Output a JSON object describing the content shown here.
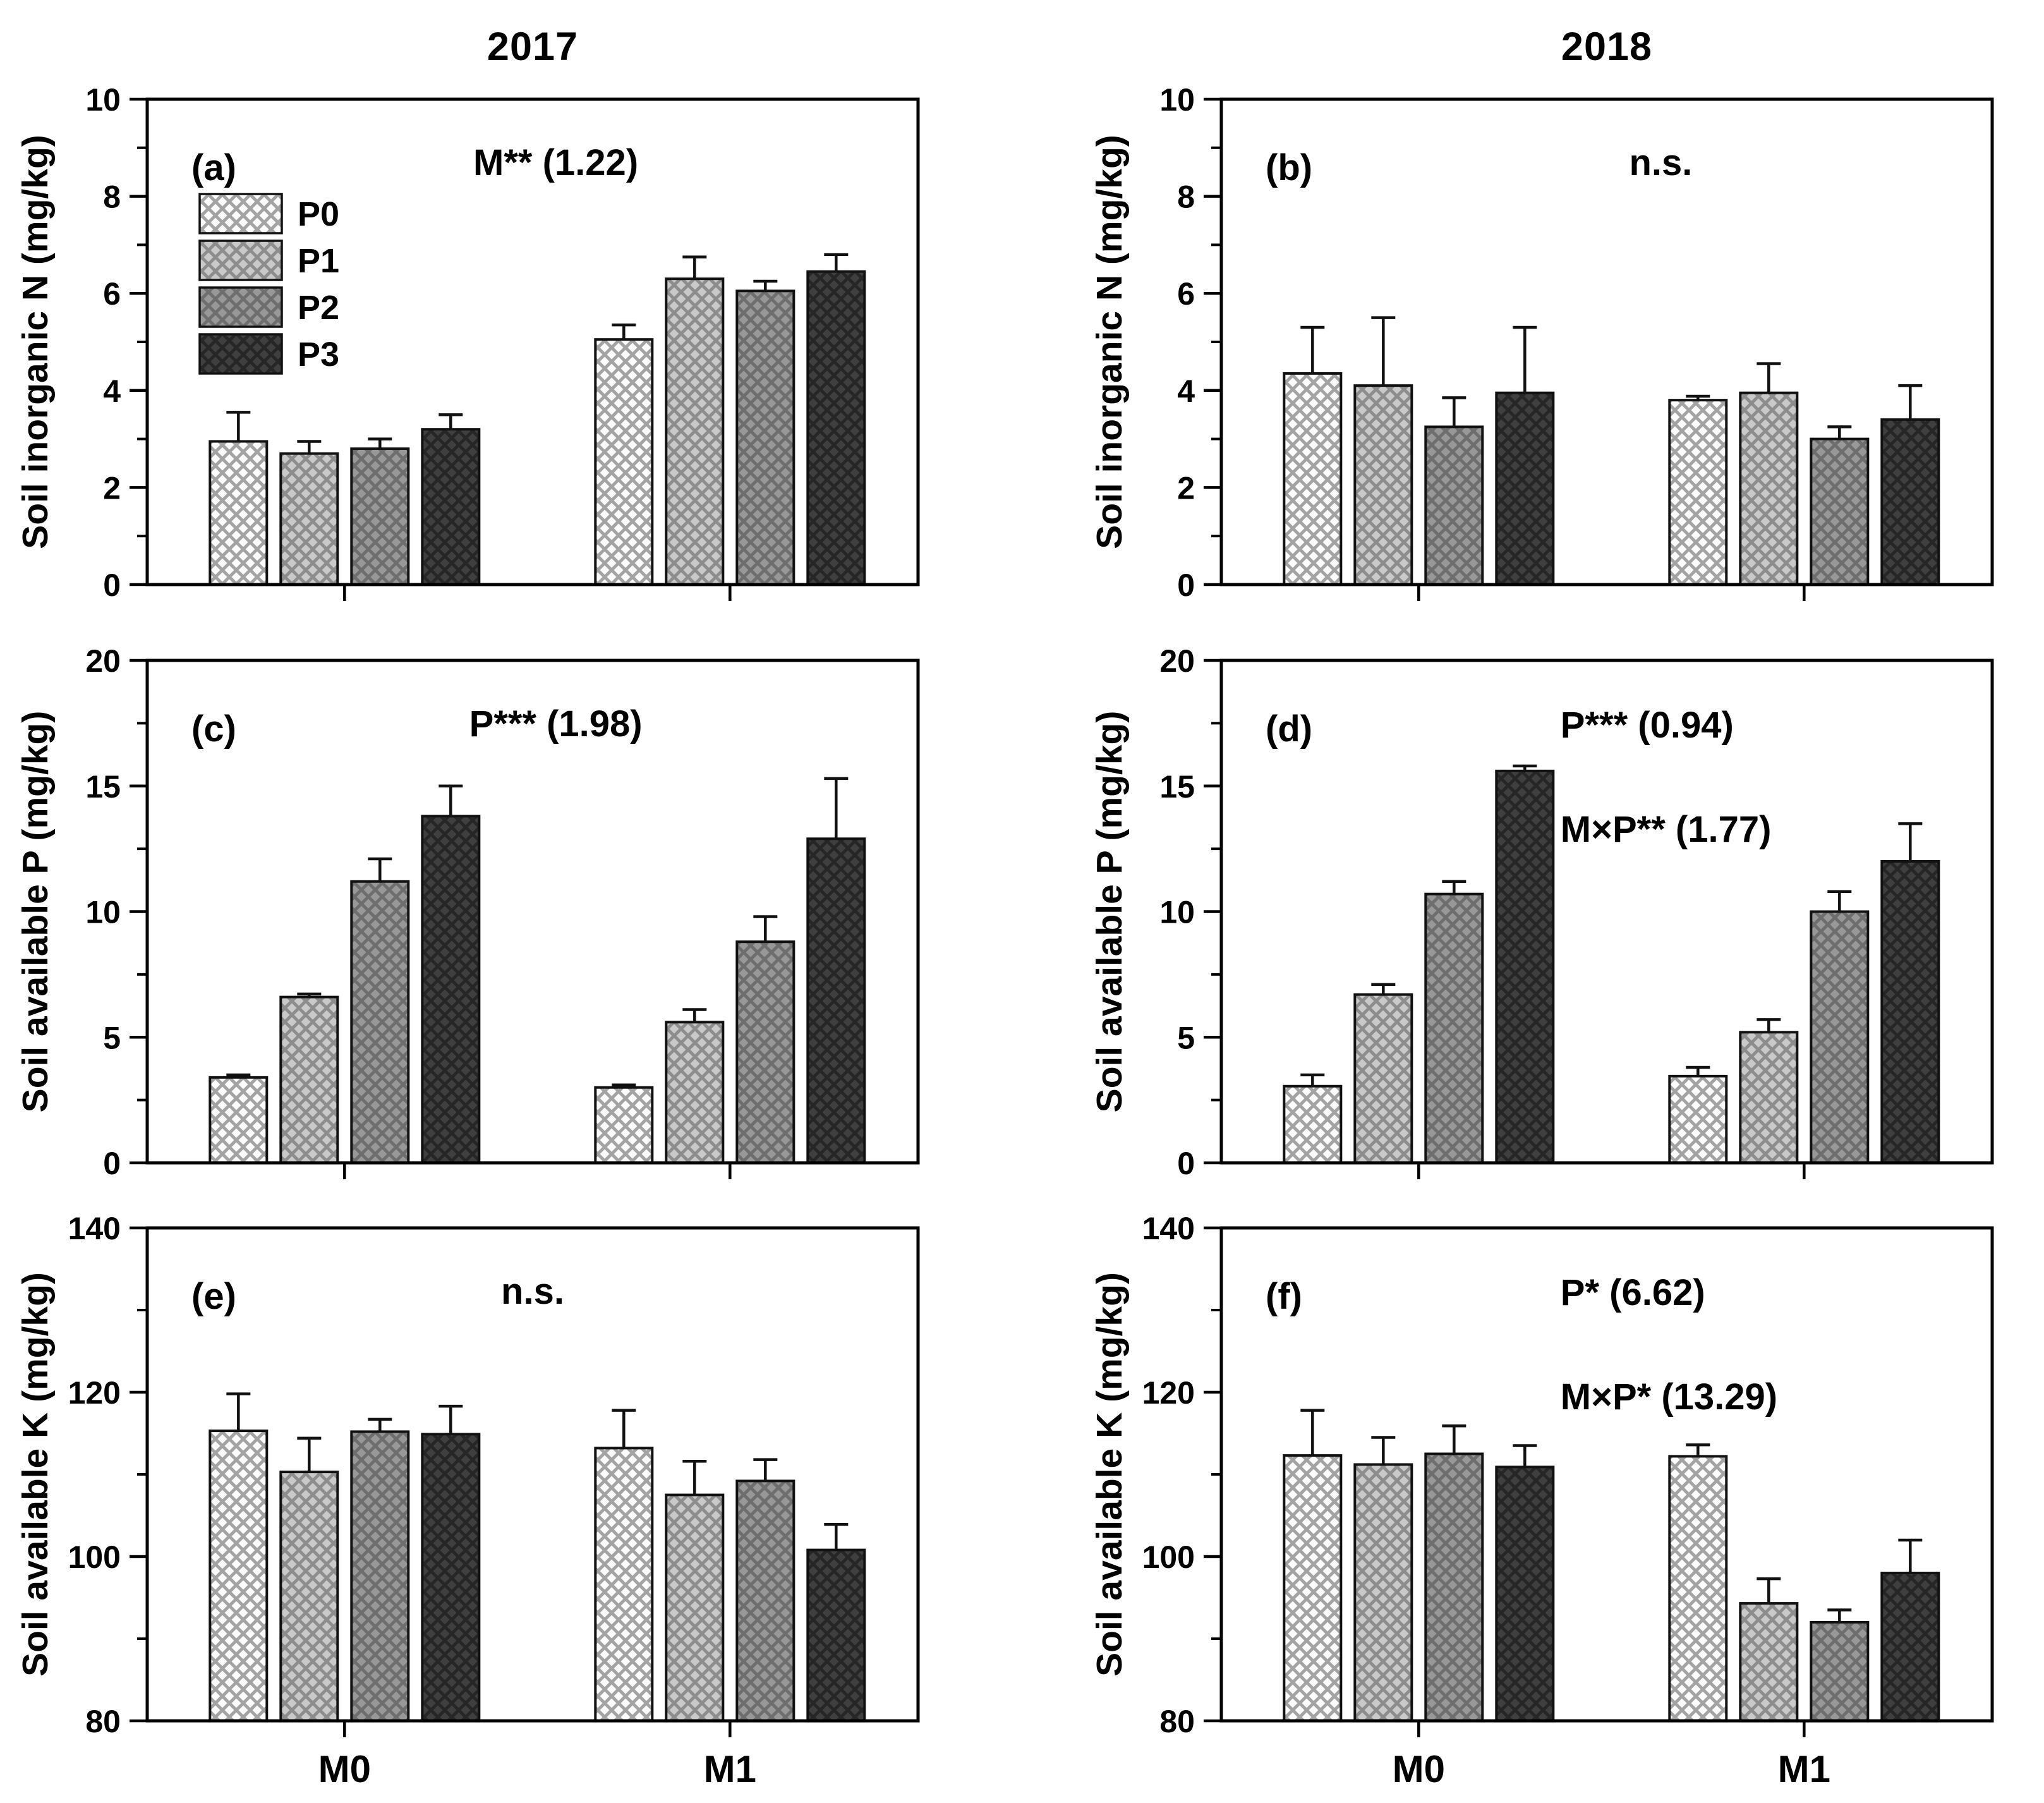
{
  "figure": {
    "columns": [
      {
        "title": "2017"
      },
      {
        "title": "2018"
      }
    ],
    "legend": {
      "labels": [
        "P0",
        "P1",
        "P2",
        "P3"
      ],
      "position": "upper-left-panel-a"
    },
    "series_styles": [
      {
        "name": "P0",
        "fill": "#fbfbfb",
        "hatch": "#a3a3a3"
      },
      {
        "name": "P1",
        "fill": "#c9c9c9",
        "hatch": "#8d8d8d"
      },
      {
        "name": "P2",
        "fill": "#989898",
        "hatch": "#6e6e6e"
      },
      {
        "name": "P3",
        "fill": "#3f3f3f",
        "hatch": "#262626"
      }
    ],
    "categories": [
      "M0",
      "M1"
    ],
    "text_color": "#000000",
    "axis_color": "#000000"
  },
  "chart_data": [
    {
      "id": "a",
      "type": "bar",
      "panel_label": "(a)",
      "column": "2017",
      "ylabel": "Soil inorganic N (mg/kg)",
      "ylim": [
        0,
        10
      ],
      "yticks": [
        0,
        2,
        4,
        6,
        8,
        10
      ],
      "yticks_minor": [
        1,
        3,
        5,
        7,
        9
      ],
      "annotations": [
        "M** (1.22)"
      ],
      "categories": [
        "M0",
        "M1"
      ],
      "series": [
        {
          "name": "P0",
          "values": [
            2.95,
            5.05
          ],
          "errors": [
            0.6,
            0.3
          ]
        },
        {
          "name": "P1",
          "values": [
            2.7,
            6.3
          ],
          "errors": [
            0.25,
            0.45
          ]
        },
        {
          "name": "P2",
          "values": [
            2.8,
            6.05
          ],
          "errors": [
            0.2,
            0.2
          ]
        },
        {
          "name": "P3",
          "values": [
            3.2,
            6.45
          ],
          "errors": [
            0.3,
            0.35
          ]
        }
      ],
      "show_x_labels": false,
      "show_legend": true
    },
    {
      "id": "b",
      "type": "bar",
      "panel_label": "(b)",
      "column": "2018",
      "ylabel": "Soil inorganic N (mg/kg)",
      "ylim": [
        0,
        10
      ],
      "yticks": [
        0,
        2,
        4,
        6,
        8,
        10
      ],
      "yticks_minor": [
        1,
        3,
        5,
        7,
        9
      ],
      "annotations": [
        "n.s."
      ],
      "categories": [
        "M0",
        "M1"
      ],
      "series": [
        {
          "name": "P0",
          "values": [
            4.35,
            3.8
          ],
          "errors": [
            0.95,
            0.08
          ]
        },
        {
          "name": "P1",
          "values": [
            4.1,
            3.95
          ],
          "errors": [
            1.4,
            0.6
          ]
        },
        {
          "name": "P2",
          "values": [
            3.25,
            3.0
          ],
          "errors": [
            0.6,
            0.25
          ]
        },
        {
          "name": "P3",
          "values": [
            3.95,
            3.4
          ],
          "errors": [
            1.35,
            0.7
          ]
        }
      ],
      "show_x_labels": false,
      "show_legend": false
    },
    {
      "id": "c",
      "type": "bar",
      "panel_label": "(c)",
      "column": "2017",
      "ylabel": "Soil available P (mg/kg)",
      "ylim": [
        0,
        20
      ],
      "yticks": [
        0,
        5,
        10,
        15,
        20
      ],
      "yticks_minor": [
        2.5,
        7.5,
        12.5,
        17.5
      ],
      "annotations": [
        "P*** (1.98)"
      ],
      "categories": [
        "M0",
        "M1"
      ],
      "series": [
        {
          "name": "P0",
          "values": [
            3.4,
            3.0
          ],
          "errors": [
            0.1,
            0.1
          ]
        },
        {
          "name": "P1",
          "values": [
            6.6,
            5.6
          ],
          "errors": [
            0.12,
            0.5
          ]
        },
        {
          "name": "P2",
          "values": [
            11.2,
            8.8
          ],
          "errors": [
            0.9,
            1.0
          ]
        },
        {
          "name": "P3",
          "values": [
            13.8,
            12.9
          ],
          "errors": [
            1.2,
            2.4
          ]
        }
      ],
      "show_x_labels": false,
      "show_legend": false
    },
    {
      "id": "d",
      "type": "bar",
      "panel_label": "(d)",
      "column": "2018",
      "ylabel": "Soil available P (mg/kg)",
      "ylim": [
        0,
        20
      ],
      "yticks": [
        0,
        5,
        10,
        15,
        20
      ],
      "yticks_minor": [
        2.5,
        7.5,
        12.5,
        17.5
      ],
      "annotations": [
        "P*** (0.94)",
        "M×P** (1.77)"
      ],
      "categories": [
        "M0",
        "M1"
      ],
      "series": [
        {
          "name": "P0",
          "values": [
            3.05,
            3.45
          ],
          "errors": [
            0.45,
            0.35
          ]
        },
        {
          "name": "P1",
          "values": [
            6.7,
            5.2
          ],
          "errors": [
            0.4,
            0.5
          ]
        },
        {
          "name": "P2",
          "values": [
            10.7,
            10.0
          ],
          "errors": [
            0.5,
            0.8
          ]
        },
        {
          "name": "P3",
          "values": [
            15.6,
            12.0
          ],
          "errors": [
            0.2,
            1.5
          ]
        }
      ],
      "show_x_labels": false,
      "show_legend": false
    },
    {
      "id": "e",
      "type": "bar",
      "panel_label": "(e)",
      "column": "2017",
      "ylabel": "Soil available K (mg/kg)",
      "ylim": [
        80,
        140
      ],
      "yticks": [
        80,
        100,
        120,
        140
      ],
      "yticks_minor": [
        90,
        110,
        130
      ],
      "annotations": [
        "n.s."
      ],
      "categories": [
        "M0",
        "M1"
      ],
      "series": [
        {
          "name": "P0",
          "values": [
            115.3,
            113.2
          ],
          "errors": [
            4.5,
            4.6
          ]
        },
        {
          "name": "P1",
          "values": [
            110.3,
            107.5
          ],
          "errors": [
            4.1,
            4.1
          ]
        },
        {
          "name": "P2",
          "values": [
            115.2,
            109.2
          ],
          "errors": [
            1.5,
            2.6
          ]
        },
        {
          "name": "P3",
          "values": [
            114.9,
            100.8
          ],
          "errors": [
            3.4,
            3.1
          ]
        }
      ],
      "show_x_labels": true,
      "show_legend": false
    },
    {
      "id": "f",
      "type": "bar",
      "panel_label": "(f)",
      "column": "2018",
      "ylabel": "Soil available K (mg/kg)",
      "ylim": [
        80,
        140
      ],
      "yticks": [
        80,
        100,
        120,
        140
      ],
      "yticks_minor": [
        90,
        110,
        130
      ],
      "annotations": [
        "P* (6.62)",
        "M×P* (13.29)"
      ],
      "categories": [
        "M0",
        "M1"
      ],
      "series": [
        {
          "name": "P0",
          "values": [
            112.3,
            112.2
          ],
          "errors": [
            5.5,
            1.4
          ]
        },
        {
          "name": "P1",
          "values": [
            111.2,
            94.3
          ],
          "errors": [
            3.3,
            3.0
          ]
        },
        {
          "name": "P2",
          "values": [
            112.5,
            92.0
          ],
          "errors": [
            3.4,
            1.5
          ]
        },
        {
          "name": "P3",
          "values": [
            110.9,
            98.0
          ],
          "errors": [
            2.6,
            4.0
          ]
        }
      ],
      "show_x_labels": true,
      "show_legend": false
    }
  ]
}
